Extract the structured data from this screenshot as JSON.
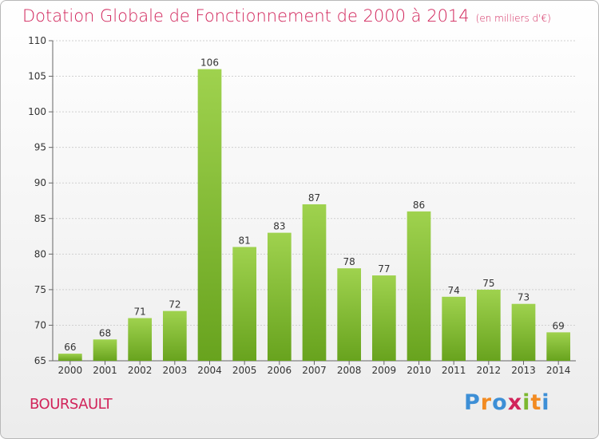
{
  "header": {
    "title": "Dotation Globale de Fonctionnement de 2000 à 2014",
    "unit": "(en milliers d'€)"
  },
  "commune": "BOURSAULT",
  "logo": {
    "letters": [
      "P",
      "r",
      "o",
      "x",
      "i",
      "t",
      "i"
    ]
  },
  "colors": {
    "title": "#d1245a",
    "bar_light": "#9fd24e",
    "bar_dark": "#68a31e",
    "grid": "#d0d0d0"
  },
  "chart_data": {
    "type": "bar",
    "title": "Dotation Globale de Fonctionnement de 2000 à 2014",
    "xlabel": "",
    "ylabel": "",
    "categories": [
      "2000",
      "2001",
      "2002",
      "2003",
      "2004",
      "2005",
      "2006",
      "2007",
      "2008",
      "2009",
      "2010",
      "2011",
      "2012",
      "2013",
      "2014"
    ],
    "values": [
      66,
      68,
      71,
      72,
      106,
      81,
      83,
      87,
      78,
      77,
      86,
      74,
      75,
      73,
      69
    ],
    "ylim": [
      65,
      110
    ],
    "yticks": [
      65,
      70,
      75,
      80,
      85,
      90,
      95,
      100,
      105,
      110
    ],
    "grid": true,
    "legend": "none"
  }
}
